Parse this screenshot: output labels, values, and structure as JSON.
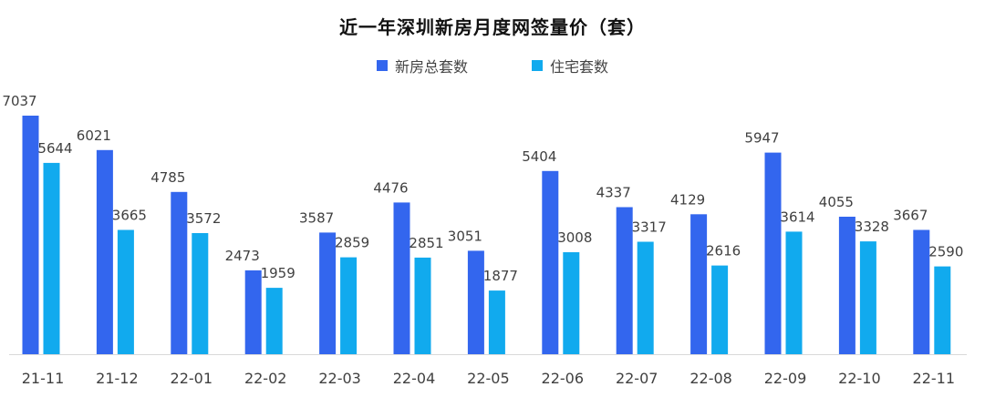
{
  "chart_data": {
    "type": "bar",
    "title": "近一年深圳新房月度网签量价（套）",
    "categories": [
      "21-11",
      "21-12",
      "22-01",
      "22-02",
      "22-03",
      "22-04",
      "22-05",
      "22-06",
      "22-07",
      "22-08",
      "22-09",
      "22-10",
      "22-11"
    ],
    "series": [
      {
        "name": "新房总套数",
        "color": "#3366ee",
        "values": [
          7037,
          6021,
          4785,
          2473,
          3587,
          4476,
          3051,
          5404,
          4337,
          4129,
          5947,
          4055,
          3667
        ]
      },
      {
        "name": "住宅套数",
        "color": "#11aaee",
        "values": [
          5644,
          3665,
          3572,
          1959,
          2859,
          2851,
          1877,
          3008,
          3317,
          2616,
          3614,
          3328,
          2590
        ]
      }
    ],
    "xlabel": "",
    "ylabel": "",
    "ylim": [
      0,
      7037
    ],
    "legend": "top-center",
    "grid": false,
    "axis_color": "#d9d9d9"
  }
}
